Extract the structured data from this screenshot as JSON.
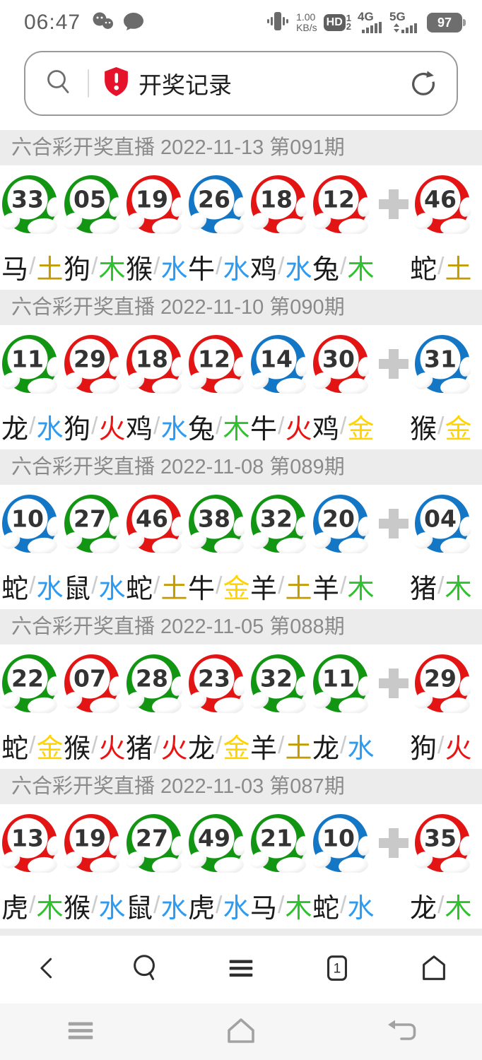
{
  "status_bar": {
    "time": "06:47",
    "net_speed_value": "1.00",
    "net_speed_unit": "KB/s",
    "hd_label": "HD",
    "hd_sim1": "1",
    "hd_sim2": "2",
    "net_4g_label": "4G",
    "net_5g_label": "5G",
    "battery_percent": "97"
  },
  "search": {
    "query": "开奖记录"
  },
  "icons": {
    "wechat-icon": "chat-bubbles",
    "message-icon": "chat-bubble",
    "vibrate-icon": "phone-vibrate",
    "battery-icon": "battery-filled",
    "search-icon": "magnifier",
    "shield-alert-icon": "shield-exclamation",
    "refresh-icon": "circular-arrow",
    "plus-icon": "plus",
    "back-icon": "chevron-left",
    "menu-icon": "three-lines",
    "tabs-icon": "numbered-square",
    "home-icon": "house",
    "nav-menu-icon": "three-lines",
    "nav-home-icon": "house",
    "nav-back-icon": "return-arrow"
  },
  "ball_colors": {
    "green": "#129512",
    "red": "#E31414",
    "blue": "#1377C6"
  },
  "element_colors": {
    "金": "#FFD400",
    "木": "#2EC22E",
    "水": "#2E9BF0",
    "火": "#EC1313",
    "土": "#C39B00"
  },
  "zodiac_color": "#1A1A1A",
  "slash_color": "#CCCCCC",
  "plus_color": "#C9C9C9",
  "sections": [
    {
      "title": "六合彩开奖直播 2022-11-13 第091期",
      "balls": [
        {
          "num": "33",
          "color": "green",
          "zodiac": "马",
          "element": "土"
        },
        {
          "num": "05",
          "color": "green",
          "zodiac": "狗",
          "element": "木"
        },
        {
          "num": "19",
          "color": "red",
          "zodiac": "猴",
          "element": "水"
        },
        {
          "num": "26",
          "color": "blue",
          "zodiac": "牛",
          "element": "水"
        },
        {
          "num": "18",
          "color": "red",
          "zodiac": "鸡",
          "element": "水"
        },
        {
          "num": "12",
          "color": "red",
          "zodiac": "兔",
          "element": "木"
        }
      ],
      "special": {
        "num": "46",
        "color": "red",
        "zodiac": "蛇",
        "element": "土"
      }
    },
    {
      "title": "六合彩开奖直播 2022-11-10 第090期",
      "balls": [
        {
          "num": "11",
          "color": "green",
          "zodiac": "龙",
          "element": "水"
        },
        {
          "num": "29",
          "color": "red",
          "zodiac": "狗",
          "element": "火"
        },
        {
          "num": "18",
          "color": "red",
          "zodiac": "鸡",
          "element": "水"
        },
        {
          "num": "12",
          "color": "red",
          "zodiac": "兔",
          "element": "木"
        },
        {
          "num": "14",
          "color": "blue",
          "zodiac": "牛",
          "element": "火"
        },
        {
          "num": "30",
          "color": "red",
          "zodiac": "鸡",
          "element": "金"
        }
      ],
      "special": {
        "num": "31",
        "color": "blue",
        "zodiac": "猴",
        "element": "金"
      }
    },
    {
      "title": "六合彩开奖直播 2022-11-08 第089期",
      "balls": [
        {
          "num": "10",
          "color": "blue",
          "zodiac": "蛇",
          "element": "水"
        },
        {
          "num": "27",
          "color": "green",
          "zodiac": "鼠",
          "element": "水"
        },
        {
          "num": "46",
          "color": "red",
          "zodiac": "蛇",
          "element": "土"
        },
        {
          "num": "38",
          "color": "green",
          "zodiac": "牛",
          "element": "金"
        },
        {
          "num": "32",
          "color": "green",
          "zodiac": "羊",
          "element": "土"
        },
        {
          "num": "20",
          "color": "blue",
          "zodiac": "羊",
          "element": "木"
        }
      ],
      "special": {
        "num": "04",
        "color": "blue",
        "zodiac": "猪",
        "element": "木"
      }
    },
    {
      "title": "六合彩开奖直播 2022-11-05 第088期",
      "balls": [
        {
          "num": "22",
          "color": "green",
          "zodiac": "蛇",
          "element": "金"
        },
        {
          "num": "07",
          "color": "red",
          "zodiac": "猴",
          "element": "火"
        },
        {
          "num": "28",
          "color": "green",
          "zodiac": "猪",
          "element": "火"
        },
        {
          "num": "23",
          "color": "red",
          "zodiac": "龙",
          "element": "金"
        },
        {
          "num": "32",
          "color": "green",
          "zodiac": "羊",
          "element": "土"
        },
        {
          "num": "11",
          "color": "green",
          "zodiac": "龙",
          "element": "水"
        }
      ],
      "special": {
        "num": "29",
        "color": "red",
        "zodiac": "狗",
        "element": "火"
      }
    },
    {
      "title": "六合彩开奖直播 2022-11-03 第087期",
      "balls": [
        {
          "num": "13",
          "color": "red",
          "zodiac": "虎",
          "element": "木"
        },
        {
          "num": "19",
          "color": "red",
          "zodiac": "猴",
          "element": "水"
        },
        {
          "num": "27",
          "color": "green",
          "zodiac": "鼠",
          "element": "水"
        },
        {
          "num": "49",
          "color": "green",
          "zodiac": "虎",
          "element": "水"
        },
        {
          "num": "21",
          "color": "green",
          "zodiac": "马",
          "element": "木"
        },
        {
          "num": "10",
          "color": "blue",
          "zodiac": "蛇",
          "element": "水"
        }
      ],
      "special": {
        "num": "35",
        "color": "red",
        "zodiac": "龙",
        "element": "木"
      }
    }
  ],
  "browser_nav": {
    "tab_count": "1",
    "buttons": [
      "back",
      "search",
      "menu",
      "tabs",
      "home"
    ]
  },
  "system_nav": {
    "buttons": [
      "menu",
      "home",
      "back"
    ]
  }
}
